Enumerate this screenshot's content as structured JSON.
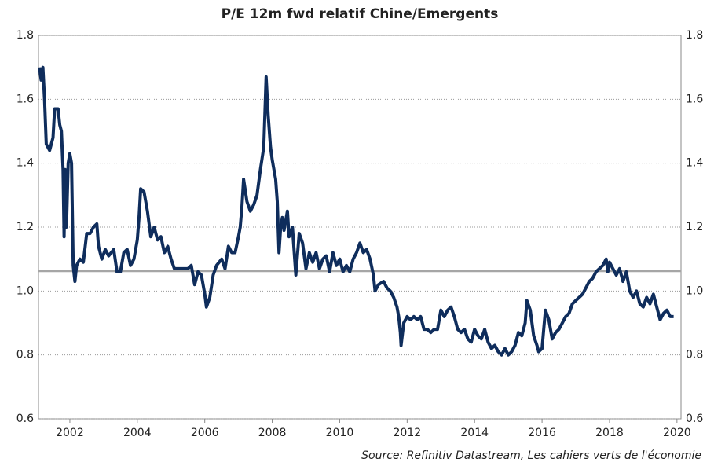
{
  "chart_data": {
    "type": "line",
    "title": "P/E 12m fwd relatif Chine/Emergents",
    "source": "Source: Refinitiv Datastream, Les cahiers verts de l'économie",
    "xlim": [
      2001.07,
      2020.12
    ],
    "xticks": [
      2002,
      2004,
      2006,
      2008,
      2010,
      2012,
      2014,
      2016,
      2018,
      2020
    ],
    "ylim": [
      0.6,
      1.8
    ],
    "yticks": [
      0.6,
      0.8,
      {
        "value": 1,
        "label": "1.0"
      },
      1.2,
      1.4,
      1.6,
      1.8
    ],
    "grid": true,
    "hline": {
      "value": 1.063,
      "color": "#a6a6a6"
    },
    "series": [
      {
        "color": "#0f2d5c",
        "x": [
          2001.1,
          2001.15,
          2001.2,
          2001.25,
          2001.3,
          2001.4,
          2001.5,
          2001.55,
          2001.65,
          2001.7,
          2001.75,
          2001.8,
          2001.83,
          2001.86,
          2001.9,
          2001.95,
          2002.0,
          2002.05,
          2002.1,
          2002.15,
          2002.2,
          2002.3,
          2002.4,
          2002.5,
          2002.6,
          2002.7,
          2002.8,
          2002.85,
          2002.95,
          2003.05,
          2003.15,
          2003.3,
          2003.4,
          2003.5,
          2003.6,
          2003.7,
          2003.8,
          2003.9,
          2004.0,
          2004.05,
          2004.1,
          2004.2,
          2004.3,
          2004.4,
          2004.5,
          2004.6,
          2004.7,
          2004.8,
          2004.9,
          2005.0,
          2005.1,
          2005.3,
          2005.5,
          2005.6,
          2005.7,
          2005.8,
          2005.9,
          2006.0,
          2006.05,
          2006.15,
          2006.25,
          2006.35,
          2006.5,
          2006.6,
          2006.7,
          2006.8,
          2006.9,
          2007.0,
          2007.05,
          2007.1,
          2007.15,
          2007.25,
          2007.35,
          2007.45,
          2007.55,
          2007.65,
          2007.75,
          2007.82,
          2007.88,
          2007.95,
          2008.0,
          2008.1,
          2008.15,
          2008.2,
          2008.25,
          2008.3,
          2008.35,
          2008.45,
          2008.5,
          2008.6,
          2008.7,
          2008.8,
          2008.9,
          2009.0,
          2009.1,
          2009.2,
          2009.3,
          2009.4,
          2009.5,
          2009.6,
          2009.7,
          2009.8,
          2009.9,
          2010.0,
          2010.1,
          2010.2,
          2010.3,
          2010.4,
          2010.5,
          2010.6,
          2010.7,
          2010.8,
          2010.9,
          2011.0,
          2011.05,
          2011.15,
          2011.3,
          2011.4,
          2011.5,
          2011.6,
          2011.7,
          2011.75,
          2011.8,
          2011.82,
          2011.9,
          2012.0,
          2012.1,
          2012.2,
          2012.3,
          2012.4,
          2012.5,
          2012.6,
          2012.7,
          2012.8,
          2012.9,
          2013.0,
          2013.1,
          2013.2,
          2013.3,
          2013.4,
          2013.5,
          2013.6,
          2013.7,
          2013.8,
          2013.9,
          2014.0,
          2014.1,
          2014.2,
          2014.3,
          2014.4,
          2014.5,
          2014.6,
          2014.7,
          2014.8,
          2014.9,
          2015.0,
          2015.1,
          2015.2,
          2015.3,
          2015.4,
          2015.5,
          2015.55,
          2015.65,
          2015.75,
          2015.85,
          2015.9,
          2016.0,
          2016.05,
          2016.1,
          2016.2,
          2016.3,
          2016.4,
          2016.5,
          2016.6,
          2016.7,
          2016.8,
          2016.9,
          2017.0,
          2017.1,
          2017.2,
          2017.3,
          2017.4,
          2017.5,
          2017.6,
          2017.7,
          2017.8,
          2017.9,
          2017.95,
          2018.0,
          2018.1,
          2018.2,
          2018.3,
          2018.4,
          2018.5,
          2018.6,
          2018.7,
          2018.8,
          2018.9,
          2019.0,
          2019.1,
          2019.2,
          2019.3,
          2019.4,
          2019.5,
          2019.6,
          2019.7,
          2019.8,
          2019.9
        ],
        "values": [
          1.7,
          1.66,
          1.7,
          1.6,
          1.46,
          1.44,
          1.48,
          1.57,
          1.57,
          1.52,
          1.5,
          1.38,
          1.17,
          1.38,
          1.2,
          1.4,
          1.43,
          1.4,
          1.08,
          1.03,
          1.08,
          1.1,
          1.09,
          1.18,
          1.18,
          1.2,
          1.21,
          1.14,
          1.1,
          1.13,
          1.11,
          1.13,
          1.06,
          1.06,
          1.12,
          1.13,
          1.08,
          1.1,
          1.16,
          1.23,
          1.32,
          1.31,
          1.25,
          1.17,
          1.2,
          1.16,
          1.17,
          1.12,
          1.14,
          1.1,
          1.07,
          1.07,
          1.07,
          1.08,
          1.02,
          1.06,
          1.05,
          0.99,
          0.95,
          0.98,
          1.05,
          1.08,
          1.1,
          1.07,
          1.14,
          1.12,
          1.12,
          1.17,
          1.2,
          1.26,
          1.35,
          1.28,
          1.25,
          1.27,
          1.3,
          1.38,
          1.45,
          1.67,
          1.55,
          1.45,
          1.41,
          1.35,
          1.28,
          1.12,
          1.2,
          1.23,
          1.19,
          1.25,
          1.17,
          1.2,
          1.05,
          1.18,
          1.15,
          1.07,
          1.12,
          1.09,
          1.12,
          1.07,
          1.1,
          1.11,
          1.06,
          1.12,
          1.08,
          1.1,
          1.06,
          1.08,
          1.06,
          1.1,
          1.12,
          1.15,
          1.12,
          1.13,
          1.1,
          1.05,
          1.0,
          1.02,
          1.03,
          1.01,
          1.0,
          0.98,
          0.95,
          0.92,
          0.87,
          0.83,
          0.9,
          0.92,
          0.91,
          0.92,
          0.91,
          0.92,
          0.88,
          0.88,
          0.87,
          0.88,
          0.88,
          0.94,
          0.92,
          0.94,
          0.95,
          0.92,
          0.88,
          0.87,
          0.88,
          0.85,
          0.84,
          0.88,
          0.86,
          0.85,
          0.88,
          0.84,
          0.82,
          0.83,
          0.81,
          0.8,
          0.82,
          0.8,
          0.81,
          0.83,
          0.87,
          0.86,
          0.9,
          0.97,
          0.94,
          0.86,
          0.83,
          0.81,
          0.82,
          0.88,
          0.94,
          0.91,
          0.85,
          0.87,
          0.88,
          0.9,
          0.92,
          0.93,
          0.96,
          0.97,
          0.98,
          0.99,
          1.01,
          1.03,
          1.04,
          1.06,
          1.07,
          1.08,
          1.1,
          1.06,
          1.09,
          1.07,
          1.05,
          1.07,
          1.03,
          1.06,
          1.0,
          0.98,
          1.0,
          0.96,
          0.95,
          0.98,
          0.96,
          0.99,
          0.95,
          0.91,
          0.93,
          0.94,
          0.92,
          0.92
        ]
      }
    ]
  }
}
